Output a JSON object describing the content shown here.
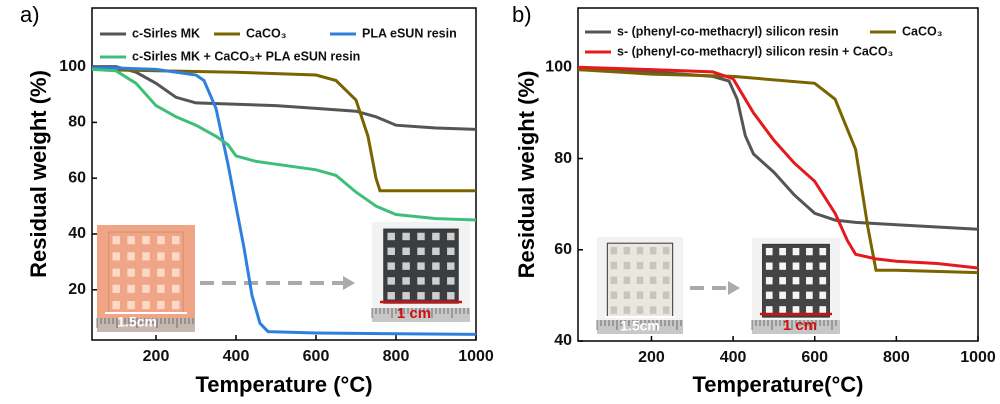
{
  "chart_data": [
    {
      "type": "line",
      "panel_label": "a)",
      "x_label": "Temperature (°C)",
      "y_label": "Residual weight (%)",
      "xlim": [
        40,
        1000
      ],
      "ylim": [
        2,
        121
      ],
      "xticks": [
        200,
        400,
        600,
        800,
        1000
      ],
      "yticks": [
        20,
        40,
        60,
        80,
        100
      ],
      "annotations": [
        "1.5cm",
        "1 cm"
      ],
      "series": [
        {
          "name": "c-Sirles MK",
          "color": "#555555",
          "x": [
            40,
            100,
            150,
            200,
            250,
            300,
            400,
            500,
            600,
            700,
            750,
            800,
            900,
            1000
          ],
          "values": [
            100,
            100,
            98,
            94,
            89,
            87,
            86.5,
            86,
            85,
            84,
            82,
            79,
            78,
            77.5
          ]
        },
        {
          "name": "CaCO₃",
          "color": "#7a6400",
          "x": [
            40,
            200,
            400,
            600,
            650,
            700,
            730,
            750,
            760,
            800,
            1000
          ],
          "values": [
            99,
            98.5,
            98,
            97,
            95,
            88,
            75,
            60,
            55.5,
            55.5,
            55.5
          ]
        },
        {
          "name": "PLA eSUN resin",
          "color": "#2f7fe0",
          "x": [
            40,
            100,
            200,
            300,
            320,
            350,
            380,
            400,
            420,
            440,
            460,
            480,
            600,
            1000
          ],
          "values": [
            99.5,
            99.5,
            99,
            97,
            95,
            85,
            65,
            50,
            35,
            18,
            8,
            5,
            4.5,
            4
          ]
        },
        {
          "name": "c-Sirles MK + CaCO₃+ PLA eSUN resin",
          "color": "#3dbf7a",
          "x": [
            40,
            100,
            150,
            200,
            250,
            300,
            350,
            380,
            400,
            450,
            500,
            600,
            650,
            700,
            750,
            800,
            900,
            1000
          ],
          "values": [
            99,
            98.5,
            94,
            86,
            82,
            79,
            75,
            72,
            68,
            66,
            65,
            63,
            61,
            55,
            50,
            47,
            45.5,
            45
          ]
        }
      ]
    },
    {
      "type": "line",
      "panel_label": "b)",
      "x_label": "Temperature(°C)",
      "y_label": "Residual weight (%)",
      "xlim": [
        20,
        1000
      ],
      "ylim": [
        40,
        113
      ],
      "xticks": [
        200,
        400,
        600,
        800,
        1000
      ],
      "yticks": [
        40,
        60,
        80,
        100
      ],
      "annotations": [
        "1.5cm",
        "1 cm"
      ],
      "series": [
        {
          "name": "s- (phenyl-co-methacryl) silicon resin",
          "color": "#555555",
          "x": [
            20,
            200,
            350,
            390,
            410,
            430,
            450,
            500,
            550,
            600,
            650,
            700,
            800,
            900,
            1000
          ],
          "values": [
            99.5,
            99,
            98,
            97,
            93,
            85,
            81,
            77,
            72,
            68,
            66.5,
            66,
            65.5,
            65,
            64.5
          ]
        },
        {
          "name": "CaCO₃",
          "color": "#7a6400",
          "x": [
            20,
            200,
            400,
            600,
            650,
            700,
            730,
            750,
            800,
            1000
          ],
          "values": [
            99.5,
            98.5,
            98,
            96.5,
            93,
            82,
            65,
            55.5,
            55.5,
            55
          ]
        },
        {
          "name": "s- (phenyl-co-methacryl) silicon resin + CaCO₃",
          "color": "#e41a1c",
          "x": [
            20,
            200,
            350,
            400,
            430,
            450,
            500,
            550,
            600,
            650,
            680,
            700,
            750,
            800,
            900,
            1000
          ],
          "values": [
            100,
            99.5,
            99,
            97.5,
            93,
            90,
            84,
            79,
            75,
            68,
            62,
            59,
            58,
            57.5,
            57,
            56
          ]
        }
      ]
    }
  ]
}
